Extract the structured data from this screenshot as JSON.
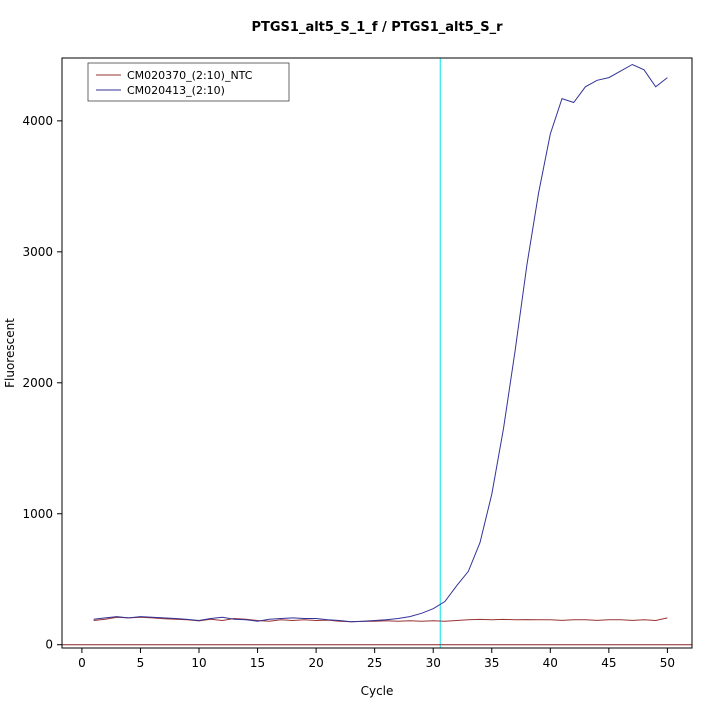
{
  "chart_data": {
    "type": "line",
    "title": "PTGS1_alt5_S_1_f / PTGS1_alt5_S_r",
    "xlabel": "Cycle",
    "ylabel": "Fluorescent",
    "xlim": [
      -1.7,
      52.1
    ],
    "ylim": [
      -25,
      4480
    ],
    "x_ticks": [
      0,
      5,
      10,
      15,
      20,
      25,
      30,
      35,
      40,
      45,
      50
    ],
    "y_ticks": [
      0,
      1000,
      2000,
      3000,
      4000
    ],
    "grid": "off",
    "legend_position": "top-left",
    "threshold_line": {
      "x": 30.6,
      "color": "#00E5EE"
    },
    "baseline": {
      "y": 0,
      "color": "#8B2323"
    },
    "x": [
      1,
      2,
      3,
      4,
      5,
      6,
      7,
      8,
      9,
      10,
      11,
      12,
      13,
      14,
      15,
      16,
      17,
      18,
      19,
      20,
      21,
      22,
      23,
      24,
      25,
      26,
      27,
      28,
      29,
      30,
      31,
      32,
      33,
      34,
      35,
      36,
      37,
      38,
      39,
      40,
      41,
      42,
      43,
      44,
      45,
      46,
      47,
      48,
      49,
      50
    ],
    "series": [
      {
        "name": "CM020370_(2:10)_NTC",
        "color": "#993333",
        "values": [
          185,
          195,
          210,
          205,
          210,
          205,
          198,
          195,
          190,
          182,
          195,
          185,
          200,
          195,
          185,
          180,
          190,
          185,
          190,
          185,
          188,
          180,
          175,
          178,
          180,
          183,
          180,
          183,
          180,
          183,
          180,
          185,
          190,
          193,
          190,
          193,
          190,
          192,
          190,
          190,
          186,
          190,
          190,
          186,
          190,
          190,
          186,
          190,
          185,
          205
        ]
      },
      {
        "name": "CM020413_(2:10)",
        "color": "#333399",
        "values": [
          195,
          205,
          215,
          205,
          215,
          210,
          205,
          200,
          193,
          185,
          200,
          210,
          195,
          190,
          180,
          195,
          200,
          205,
          200,
          200,
          190,
          185,
          175,
          180,
          185,
          190,
          200,
          215,
          240,
          275,
          330,
          450,
          560,
          780,
          1150,
          1650,
          2250,
          2900,
          3450,
          3900,
          4170,
          4140,
          4260,
          4310,
          4330,
          4380,
          4430,
          4390,
          4260,
          4330
        ]
      }
    ]
  }
}
